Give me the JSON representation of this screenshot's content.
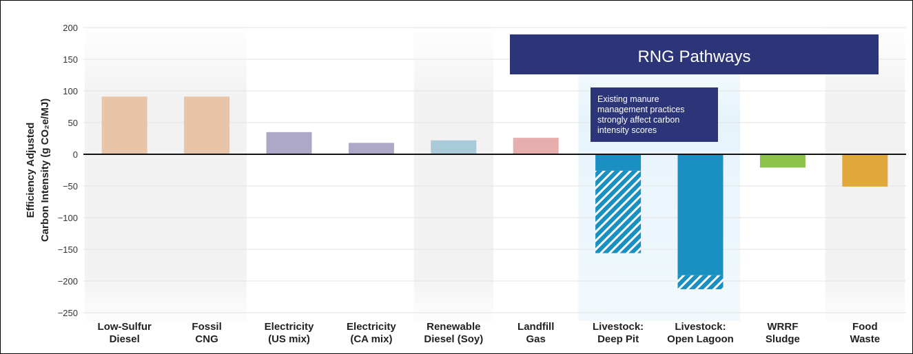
{
  "chart_data": {
    "type": "bar",
    "ylabel": "Efficiency Adjusted Carbon Intensity (g CO₂e/MJ)",
    "ylabel_line1": "Efficiency Adjusted",
    "ylabel_line2": "Carbon Intensity  (g CO₂e/MJ)",
    "ylim": [
      -250,
      200
    ],
    "yticks": [
      200,
      150,
      100,
      50,
      0,
      -50,
      -100,
      -150,
      -200,
      -250
    ],
    "ytick_labels": [
      "200",
      "150",
      "100",
      "50",
      "0",
      "−50",
      "−100",
      "−150",
      "−200",
      "−250"
    ],
    "categories": [
      {
        "label": [
          "Low-Sulfur",
          "Diesel"
        ],
        "value": 91,
        "color": "#e8c4a8"
      },
      {
        "label": [
          "Fossil",
          "CNG"
        ],
        "value": 91,
        "color": "#e8c4a8"
      },
      {
        "label": [
          "Electricity",
          "(US mix)"
        ],
        "value": 35,
        "color": "#ada8c7"
      },
      {
        "label": [
          "Electricity",
          "(CA mix)"
        ],
        "value": 18,
        "color": "#ada8c7"
      },
      {
        "label": [
          "Renewable",
          "Diesel (Soy)"
        ],
        "value": 22,
        "color": "#a9cad9"
      },
      {
        "label": [
          "Landfill",
          "Gas"
        ],
        "value": 26,
        "color": "#e7aeae"
      },
      {
        "label": [
          "Livestock:",
          "Deep Pit"
        ],
        "value": -156,
        "solid_value": -26,
        "color": "#1a8fc1"
      },
      {
        "label": [
          "Livestock:",
          "Open Lagoon"
        ],
        "value": -213,
        "solid_value": -191,
        "color": "#1a8fc1"
      },
      {
        "label": [
          "WRRF",
          "Sludge"
        ],
        "value": -21,
        "color": "#8cc14b"
      },
      {
        "label": [
          "Food",
          "Waste"
        ],
        "value": -51,
        "color": "#e0a83a"
      }
    ],
    "banner": {
      "text": "RNG Pathways",
      "color": "#2b3578"
    },
    "annotation": {
      "lines": [
        "Existing manure",
        "management practices",
        "strongly affect carbon",
        "intensity scores"
      ],
      "color": "#2b3578"
    },
    "grid": true
  }
}
